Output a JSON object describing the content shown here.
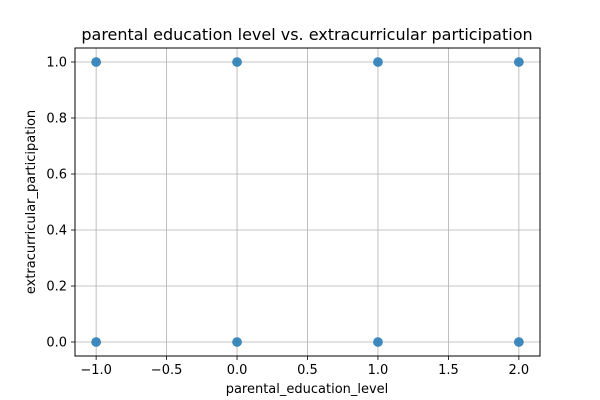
{
  "chart_data": {
    "type": "scatter",
    "title": "parental education level vs. extracurricular participation",
    "xlabel": "parental_education_level",
    "ylabel": "extracurricular_participation",
    "xlim": [
      -1.15,
      2.15
    ],
    "ylim": [
      -0.05,
      1.05
    ],
    "xticks": [
      -1.0,
      -0.5,
      0.0,
      0.5,
      1.0,
      1.5,
      2.0
    ],
    "xtick_labels": [
      "−1.0",
      "−0.5",
      "0.0",
      "0.5",
      "1.0",
      "1.5",
      "2.0"
    ],
    "yticks": [
      0.0,
      0.2,
      0.4,
      0.6,
      0.8,
      1.0
    ],
    "ytick_labels": [
      "0.0",
      "0.2",
      "0.4",
      "0.6",
      "0.8",
      "1.0"
    ],
    "grid": true,
    "marker_color": "#1f77b4",
    "series": [
      {
        "x": [
          -1,
          0,
          1,
          2,
          -1,
          0,
          1,
          2
        ],
        "y": [
          1,
          1,
          1,
          1,
          0,
          0,
          0,
          0
        ]
      }
    ]
  }
}
